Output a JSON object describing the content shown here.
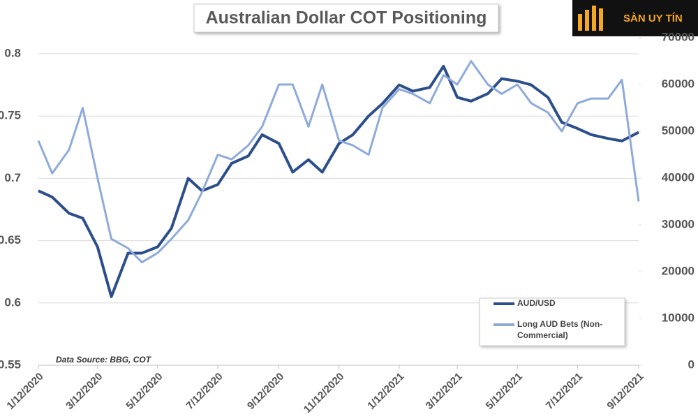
{
  "chart_data": {
    "type": "line",
    "title": "Australian Dollar COT Positioning",
    "source_note": "Data Source: BBG, COT",
    "watermark": "SÀN UY TÍN",
    "x": [
      "1/12/2020",
      "1/26/2020",
      "2/12/2020",
      "2/26/2020",
      "3/12/2020",
      "3/26/2020",
      "4/12/2020",
      "4/26/2020",
      "5/12/2020",
      "5/26/2020",
      "6/12/2020",
      "6/26/2020",
      "7/12/2020",
      "7/26/2020",
      "8/12/2020",
      "8/26/2020",
      "9/12/2020",
      "9/26/2020",
      "10/12/2020",
      "10/26/2020",
      "11/12/2020",
      "11/26/2020",
      "12/12/2020",
      "12/26/2020",
      "1/12/2021",
      "1/26/2021",
      "2/12/2021",
      "2/26/2021",
      "3/12/2021",
      "3/26/2021",
      "4/12/2021",
      "4/26/2021",
      "5/12/2021",
      "5/26/2021",
      "6/12/2021",
      "6/26/2021",
      "7/12/2021",
      "7/26/2021",
      "8/12/2021",
      "8/26/2021",
      "9/12/2021"
    ],
    "xlim": [
      "1/12/2020",
      "9/12/2021"
    ],
    "xticks": [
      "1/12/2020",
      "3/12/2020",
      "5/12/2020",
      "7/12/2020",
      "9/12/2020",
      "11/12/2020",
      "1/12/2021",
      "3/12/2021",
      "5/12/2021",
      "7/12/2021",
      "9/12/2021"
    ],
    "ylim": [
      0.55,
      0.8
    ],
    "yticks": [
      0.55,
      0.6,
      0.65,
      0.7,
      0.75,
      0.8
    ],
    "y2lim": [
      0,
      70000
    ],
    "y2ticks": [
      0,
      10000,
      20000,
      30000,
      40000,
      50000,
      60000,
      70000
    ],
    "grid": true,
    "legend": "lower right",
    "series": [
      {
        "name": "AUD/USD",
        "color": "#2c4f8c",
        "axis": "y",
        "values": [
          0.69,
          0.685,
          0.672,
          0.668,
          0.645,
          0.605,
          0.64,
          0.64,
          0.645,
          0.66,
          0.7,
          0.69,
          0.695,
          0.712,
          0.718,
          0.735,
          0.728,
          0.705,
          0.715,
          0.705,
          0.728,
          0.735,
          0.75,
          0.76,
          0.775,
          0.77,
          0.773,
          0.79,
          0.765,
          0.762,
          0.768,
          0.78,
          0.778,
          0.775,
          0.765,
          0.745,
          0.74,
          0.735,
          0.732,
          0.73,
          0.737
        ]
      },
      {
        "name": "Long AUD Bets (Non-Commercial)",
        "color": "#8eaadb",
        "axis": "y2",
        "values": [
          48000,
          41000,
          46000,
          55000,
          40000,
          27000,
          25000,
          22000,
          24000,
          27000,
          31000,
          37000,
          45000,
          44000,
          47000,
          51000,
          60000,
          60000,
          51000,
          60000,
          48000,
          47000,
          45000,
          55000,
          59000,
          58000,
          56000,
          62000,
          60000,
          65000,
          60000,
          58000,
          60000,
          56000,
          54000,
          50000,
          56000,
          57000,
          57000,
          61000,
          35000
        ]
      }
    ]
  }
}
